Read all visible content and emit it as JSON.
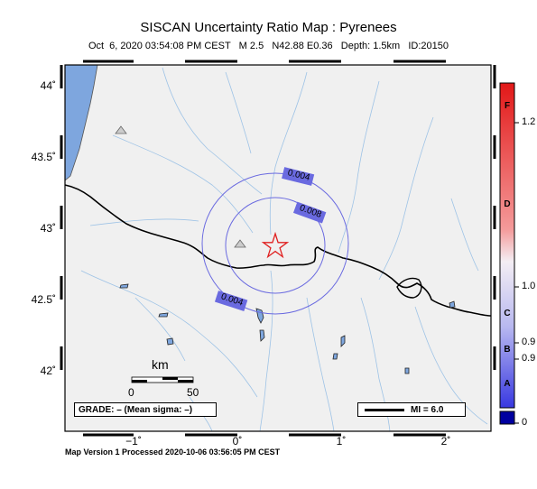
{
  "title": "SISCAN Uncertainty Ratio Map : Pyrenees",
  "subtitle": "Oct  6, 2020 03:54:08 PM CEST   M 2.5   N42.88 E0.36   Depth: 1.5km   ID:20150",
  "footer": "Map Version 1 Processed 2020-10-06 03:56:05 PM CEST",
  "lat_labels": [
    "44˚",
    "43.5˚",
    "43˚",
    "42.5˚",
    "42˚"
  ],
  "lon_labels": [
    "−1˚",
    "0˚",
    "1˚",
    "2˚"
  ],
  "contours": [
    "0.004",
    "0.008",
    "0.004"
  ],
  "scale": {
    "title": "km",
    "start": "0",
    "end": "50"
  },
  "grade_text": "GRADE: – (Mean sigma: –)",
  "mi_text": "MI = 6.0",
  "colorbar": {
    "letters": [
      "F",
      "D",
      "C",
      "B",
      "A"
    ],
    "values": [
      "1.2",
      "1.0",
      "0.9",
      "0.9",
      "0"
    ]
  },
  "epicenter": {
    "lat": 42.88,
    "lon": 0.36,
    "symbol": "star-icon"
  },
  "colors": {
    "ocean": "#7ea6de",
    "land": "#f0f0f0",
    "rivers": "#9ec3e6",
    "contour": "#6a6ae0",
    "star": "#e02020"
  }
}
